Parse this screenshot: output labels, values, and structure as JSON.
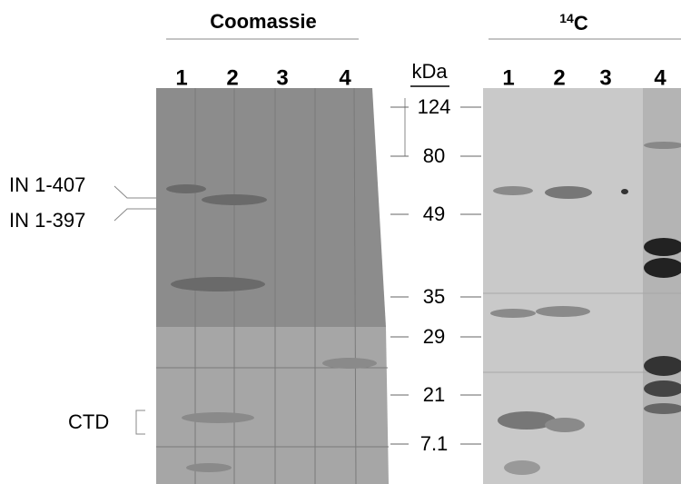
{
  "left_panel": {
    "title": "Coomassie",
    "lanes": [
      "1",
      "2",
      "3",
      "4"
    ]
  },
  "right_panel": {
    "title": {
      "superscript": "14",
      "text": "C"
    },
    "lanes": [
      "1",
      "2",
      "3",
      "4"
    ]
  },
  "markers": {
    "unit": "kDa",
    "labels": [
      "124",
      "80",
      "49",
      "35",
      "29",
      "21",
      "7.1"
    ]
  },
  "annotations": [
    "IN 1-407",
    "IN 1-397",
    "CTD"
  ]
}
